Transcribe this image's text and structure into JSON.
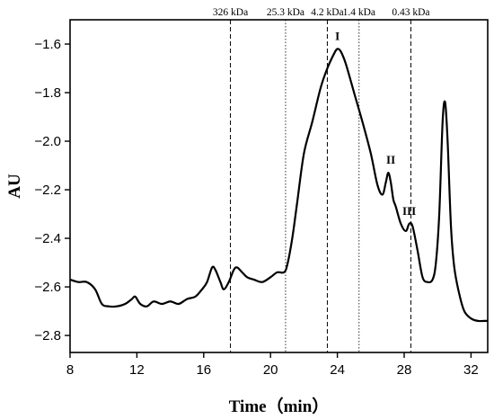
{
  "chart_data": {
    "type": "line",
    "title": "",
    "xlabel": "Time（min）",
    "ylabel": "AU",
    "xlim": [
      8,
      33
    ],
    "ylim": [
      -2.87,
      -1.5
    ],
    "xticks": [
      8,
      12,
      16,
      20,
      24,
      28,
      32
    ],
    "xtick_labels": [
      "8",
      "12",
      "16",
      "20",
      "24",
      "28",
      "32"
    ],
    "yticks": [
      -1.6,
      -1.8,
      -2.0,
      -2.2,
      -2.4,
      -2.6,
      -2.8
    ],
    "ytick_labels": [
      "−1.6",
      "−1.8",
      "−2.0",
      "−2.2",
      "−2.4",
      "−2.6",
      "−2.8"
    ],
    "grid": false,
    "series": [
      {
        "x": [
          8.0,
          8.5,
          9.0,
          9.5,
          9.9,
          10.3,
          10.8,
          11.3,
          11.7,
          11.9,
          12.2,
          12.6,
          13.0,
          13.5,
          14.0,
          14.5,
          15.0,
          15.5,
          15.9,
          16.2,
          16.5,
          16.7,
          17.0,
          17.2,
          17.5,
          17.8,
          18.0,
          18.3,
          18.6,
          19.0,
          19.5,
          20.0,
          20.4,
          20.8,
          21.0,
          21.3,
          21.6,
          22.0,
          22.5,
          23.0,
          23.4,
          23.8,
          24.0,
          24.2,
          24.5,
          25.0,
          25.5,
          26.0,
          26.4,
          26.7,
          26.9,
          27.05,
          27.2,
          27.35,
          27.5,
          27.8,
          28.1,
          28.3,
          28.5,
          28.8,
          29.1,
          29.4,
          29.7,
          29.9,
          30.1,
          30.3,
          30.45,
          30.6,
          30.8,
          31.0,
          31.3,
          31.6,
          32.0,
          32.4,
          32.8,
          33.0
        ],
        "y": [
          -2.57,
          -2.58,
          -2.58,
          -2.61,
          -2.67,
          -2.68,
          -2.68,
          -2.67,
          -2.65,
          -2.64,
          -2.67,
          -2.68,
          -2.66,
          -2.67,
          -2.66,
          -2.67,
          -2.65,
          -2.64,
          -2.61,
          -2.58,
          -2.52,
          -2.53,
          -2.58,
          -2.61,
          -2.58,
          -2.53,
          -2.52,
          -2.54,
          -2.56,
          -2.57,
          -2.58,
          -2.56,
          -2.54,
          -2.54,
          -2.51,
          -2.4,
          -2.25,
          -2.05,
          -1.92,
          -1.78,
          -1.7,
          -1.64,
          -1.62,
          -1.63,
          -1.68,
          -1.8,
          -1.92,
          -2.05,
          -2.18,
          -2.22,
          -2.17,
          -2.13,
          -2.17,
          -2.24,
          -2.27,
          -2.34,
          -2.37,
          -2.34,
          -2.35,
          -2.45,
          -2.56,
          -2.58,
          -2.57,
          -2.5,
          -2.3,
          -1.92,
          -1.84,
          -2.0,
          -2.35,
          -2.52,
          -2.63,
          -2.7,
          -2.73,
          -2.74,
          -2.74,
          -2.74
        ]
      }
    ],
    "reference_lines": [
      {
        "x": 17.6,
        "label": "326 kDa",
        "style": "dashed"
      },
      {
        "x": 20.9,
        "label": "25.3 kDa",
        "style": "dotted"
      },
      {
        "x": 23.4,
        "label": "4.2 kDa",
        "style": "dashed"
      },
      {
        "x": 25.3,
        "label": "1.4 kDa",
        "style": "dotted"
      },
      {
        "x": 28.4,
        "label": "0.43 kDa",
        "style": "dashed"
      }
    ],
    "annotations": [
      {
        "text": "I",
        "x": 24.0,
        "y": -1.62
      },
      {
        "text": "II",
        "x": 27.2,
        "y": -2.13
      },
      {
        "text": "III",
        "x": 28.3,
        "y": -2.34
      }
    ]
  }
}
